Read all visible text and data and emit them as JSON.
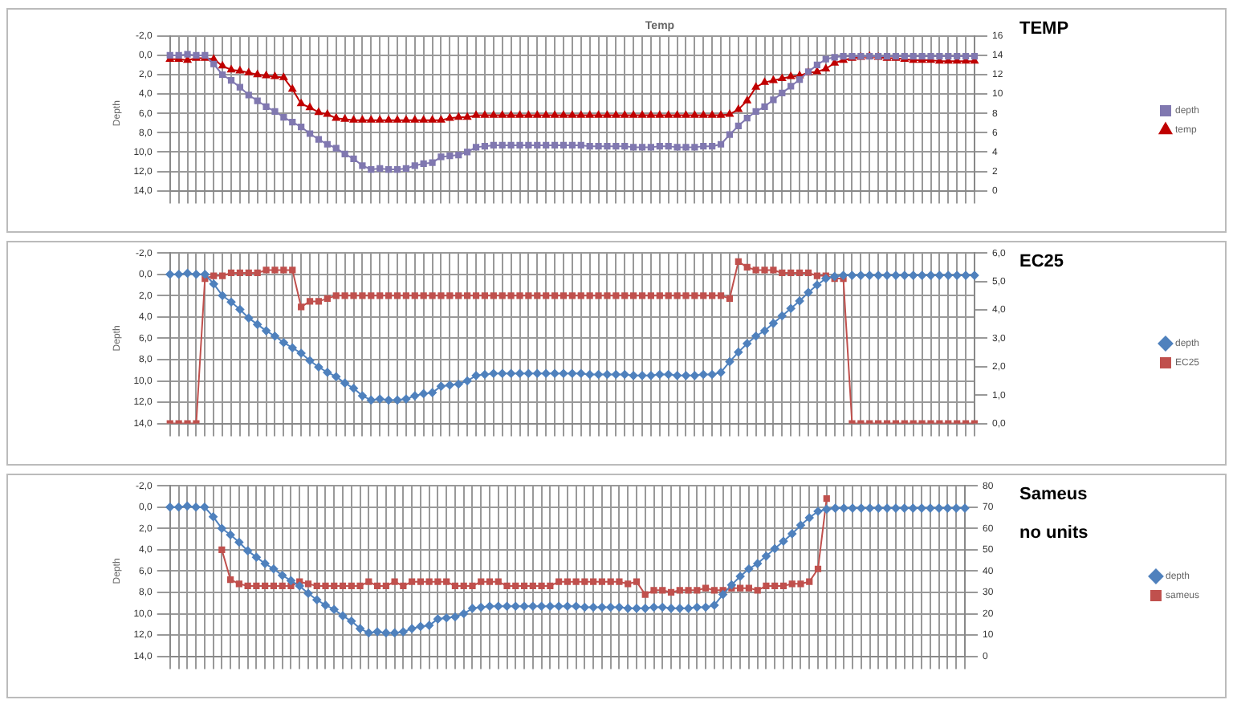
{
  "chart_data": [
    {
      "type": "line",
      "title": "Temp",
      "ylabel": "Depth",
      "annotations": [
        "TEMP"
      ],
      "legend": "right",
      "grid": true,
      "categories": [
        null,
        null,
        null,
        null,
        null,
        null,
        null,
        null,
        null,
        null,
        null,
        null,
        null,
        null,
        null,
        null,
        null,
        null,
        null,
        null,
        null,
        null,
        null,
        null,
        null,
        null,
        null,
        null,
        null,
        null,
        null,
        null,
        null,
        null,
        null,
        null,
        null,
        null,
        null,
        null,
        null,
        null,
        null,
        null,
        null,
        null,
        null,
        null,
        null,
        null,
        null,
        null,
        null,
        null,
        null,
        null,
        null,
        null,
        null,
        null,
        null,
        null,
        null,
        null,
        null,
        null,
        null,
        null,
        null,
        null,
        null,
        null,
        null,
        null,
        null,
        null,
        null,
        null,
        null,
        null,
        null,
        null,
        null,
        null,
        null,
        null,
        null,
        null,
        null,
        null,
        null,
        null,
        null
      ],
      "ylim": [
        14,
        -2
      ],
      "yticks": [
        {
          "value": -2,
          "label": "-2,0"
        },
        {
          "value": 0,
          "label": "0,0"
        },
        {
          "value": 2,
          "label": "2,0"
        },
        {
          "value": 4,
          "label": "4,0"
        },
        {
          "value": 6,
          "label": "6,0"
        },
        {
          "value": 8,
          "label": "8,0"
        },
        {
          "value": 10,
          "label": "10,0"
        },
        {
          "value": 12,
          "label": "12,0"
        },
        {
          "value": 14,
          "label": "14,0"
        }
      ],
      "y2lim": [
        0,
        16
      ],
      "y2ticks": [
        0,
        2,
        4,
        6,
        8,
        10,
        12,
        14,
        16
      ],
      "series": [
        {
          "name": "depth",
          "color": "#8078b0",
          "marker": "square",
          "values": [
            0.0,
            0.0,
            -0.1,
            0.0,
            0.0,
            0.9,
            2.0,
            2.6,
            3.3,
            4.1,
            4.7,
            5.3,
            5.8,
            6.4,
            6.9,
            7.4,
            8.1,
            8.7,
            9.2,
            9.6,
            10.2,
            10.7,
            11.4,
            11.8,
            11.7,
            11.8,
            11.8,
            11.7,
            11.4,
            11.2,
            11.1,
            10.5,
            10.4,
            10.3,
            10.0,
            9.5,
            9.4,
            9.3,
            9.3,
            9.3,
            9.3,
            9.3,
            9.3,
            9.3,
            9.3,
            9.3,
            9.3,
            9.3,
            9.4,
            9.4,
            9.4,
            9.4,
            9.4,
            9.5,
            9.5,
            9.5,
            9.4,
            9.4,
            9.5,
            9.5,
            9.5,
            9.4,
            9.4,
            9.2,
            8.2,
            7.3,
            6.5,
            5.8,
            5.3,
            4.6,
            3.9,
            3.2,
            2.5,
            1.7,
            1.0,
            0.4,
            0.2,
            0.1,
            0.1,
            0.1,
            0.1,
            0.1,
            0.1,
            0.1,
            0.1,
            0.1,
            0.1,
            0.1,
            0.1,
            0.1,
            0.1,
            0.1,
            0.1
          ]
        },
        {
          "name": "temp",
          "color": "#c00000",
          "marker": "triangle",
          "axis": "y2",
          "values": [
            13.6,
            13.6,
            13.5,
            13.7,
            13.7,
            13.6,
            12.9,
            12.5,
            12.4,
            12.2,
            12.0,
            11.9,
            11.8,
            11.7,
            10.5,
            9.0,
            8.6,
            8.1,
            7.9,
            7.5,
            7.4,
            7.3,
            7.3,
            7.3,
            7.3,
            7.3,
            7.3,
            7.3,
            7.3,
            7.3,
            7.3,
            7.3,
            7.5,
            7.6,
            7.6,
            7.8,
            7.8,
            7.8,
            7.8,
            7.8,
            7.8,
            7.8,
            7.8,
            7.8,
            7.8,
            7.8,
            7.8,
            7.8,
            7.8,
            7.8,
            7.8,
            7.8,
            7.8,
            7.8,
            7.8,
            7.8,
            7.8,
            7.8,
            7.8,
            7.8,
            7.8,
            7.8,
            7.8,
            7.8,
            7.9,
            8.4,
            9.3,
            10.7,
            11.2,
            11.4,
            11.6,
            11.8,
            11.9,
            12.2,
            12.3,
            12.6,
            13.2,
            13.5,
            13.7,
            13.8,
            13.9,
            13.8,
            13.7,
            13.7,
            13.6,
            13.5,
            13.5,
            13.5,
            13.4,
            13.4,
            13.4,
            13.4,
            13.4
          ]
        }
      ]
    },
    {
      "type": "line",
      "ylabel": "Depth",
      "annotations": [
        "EC25"
      ],
      "legend": "right",
      "grid": true,
      "categories": [
        null,
        null,
        null,
        null,
        null,
        null,
        null,
        null,
        null,
        null,
        null,
        null,
        null,
        null,
        null,
        null,
        null,
        null,
        null,
        null,
        null,
        null,
        null,
        null,
        null,
        null,
        null,
        null,
        null,
        null,
        null,
        null,
        null,
        null,
        null,
        null,
        null,
        null,
        null,
        null,
        null,
        null,
        null,
        null,
        null,
        null,
        null,
        null,
        null,
        null,
        null,
        null,
        null,
        null,
        null,
        null,
        null,
        null,
        null,
        null,
        null,
        null,
        null,
        null,
        null,
        null,
        null,
        null,
        null,
        null,
        null,
        null,
        null,
        null,
        null,
        null,
        null,
        null,
        null,
        null,
        null,
        null,
        null,
        null,
        null,
        null,
        null,
        null,
        null,
        null,
        null,
        null,
        null
      ],
      "ylim": [
        14,
        -2
      ],
      "yticks": [
        {
          "value": -2,
          "label": "-2,0"
        },
        {
          "value": 0,
          "label": "0,0"
        },
        {
          "value": 2,
          "label": "2,0"
        },
        {
          "value": 4,
          "label": "4,0"
        },
        {
          "value": 6,
          "label": "6,0"
        },
        {
          "value": 8,
          "label": "8,0"
        },
        {
          "value": 10,
          "label": "10,0"
        },
        {
          "value": 12,
          "label": "12,0"
        },
        {
          "value": 14,
          "label": "14,0"
        }
      ],
      "y2lim": [
        0,
        6
      ],
      "y2ticks": [
        {
          "value": 0,
          "label": "0,0"
        },
        {
          "value": 1,
          "label": "1,0"
        },
        {
          "value": 2,
          "label": "2,0"
        },
        {
          "value": 3,
          "label": "3,0"
        },
        {
          "value": 4,
          "label": "4,0"
        },
        {
          "value": 5,
          "label": "5,0"
        },
        {
          "value": 6,
          "label": "6,0"
        }
      ],
      "series": [
        {
          "name": "depth",
          "color": "#4f81bd",
          "marker": "diamond",
          "values": [
            0.0,
            0.0,
            -0.1,
            0.0,
            0.0,
            0.9,
            2.0,
            2.6,
            3.3,
            4.1,
            4.7,
            5.3,
            5.8,
            6.4,
            6.9,
            7.4,
            8.1,
            8.7,
            9.2,
            9.6,
            10.2,
            10.7,
            11.4,
            11.8,
            11.7,
            11.8,
            11.8,
            11.7,
            11.4,
            11.2,
            11.1,
            10.5,
            10.4,
            10.3,
            10.0,
            9.5,
            9.4,
            9.3,
            9.3,
            9.3,
            9.3,
            9.3,
            9.3,
            9.3,
            9.3,
            9.3,
            9.3,
            9.3,
            9.4,
            9.4,
            9.4,
            9.4,
            9.4,
            9.5,
            9.5,
            9.5,
            9.4,
            9.4,
            9.5,
            9.5,
            9.5,
            9.4,
            9.4,
            9.2,
            8.2,
            7.3,
            6.5,
            5.8,
            5.3,
            4.6,
            3.9,
            3.2,
            2.5,
            1.7,
            1.0,
            0.4,
            0.2,
            0.1,
            0.1,
            0.1,
            0.1,
            0.1,
            0.1,
            0.1,
            0.1,
            0.1,
            0.1,
            0.1,
            0.1,
            0.1,
            0.1,
            0.1,
            0.1
          ]
        },
        {
          "name": "EC25",
          "color": "#c0504d",
          "marker": "square",
          "axis": "y2",
          "values": [
            0.0,
            0.0,
            0.0,
            0.0,
            5.1,
            5.2,
            5.2,
            5.3,
            5.3,
            5.3,
            5.3,
            5.4,
            5.4,
            5.4,
            5.4,
            4.1,
            4.3,
            4.3,
            4.4,
            4.5,
            4.5,
            4.5,
            4.5,
            4.5,
            4.5,
            4.5,
            4.5,
            4.5,
            4.5,
            4.5,
            4.5,
            4.5,
            4.5,
            4.5,
            4.5,
            4.5,
            4.5,
            4.5,
            4.5,
            4.5,
            4.5,
            4.5,
            4.5,
            4.5,
            4.5,
            4.5,
            4.5,
            4.5,
            4.5,
            4.5,
            4.5,
            4.5,
            4.5,
            4.5,
            4.5,
            4.5,
            4.5,
            4.5,
            4.5,
            4.5,
            4.5,
            4.5,
            4.5,
            4.5,
            4.4,
            5.7,
            5.5,
            5.4,
            5.4,
            5.4,
            5.3,
            5.3,
            5.3,
            5.3,
            5.2,
            5.2,
            5.1,
            5.1,
            0.0,
            0.0,
            0.0,
            0.0,
            0.0,
            0.0,
            0.0,
            0.0,
            0.0,
            0.0,
            0.0,
            0.0,
            0.0,
            0.0,
            0.0
          ]
        }
      ]
    },
    {
      "type": "line",
      "ylabel": "Depth",
      "annotations": [
        "Sameus",
        "no units"
      ],
      "legend": "right",
      "grid": true,
      "categories": [
        null,
        null,
        null,
        null,
        null,
        null,
        null,
        null,
        null,
        null,
        null,
        null,
        null,
        null,
        null,
        null,
        null,
        null,
        null,
        null,
        null,
        null,
        null,
        null,
        null,
        null,
        null,
        null,
        null,
        null,
        null,
        null,
        null,
        null,
        null,
        null,
        null,
        null,
        null,
        null,
        null,
        null,
        null,
        null,
        null,
        null,
        null,
        null,
        null,
        null,
        null,
        null,
        null,
        null,
        null,
        null,
        null,
        null,
        null,
        null,
        null,
        null,
        null,
        null,
        null,
        null,
        null,
        null,
        null,
        null,
        null,
        null,
        null,
        null,
        null,
        null,
        null,
        null,
        null,
        null,
        null,
        null,
        null,
        null,
        null,
        null,
        null,
        null,
        null,
        null,
        null,
        null,
        null
      ],
      "ylim": [
        14,
        -2
      ],
      "yticks": [
        {
          "value": -2,
          "label": "-2,0"
        },
        {
          "value": 0,
          "label": "0,0"
        },
        {
          "value": 2,
          "label": "2,0"
        },
        {
          "value": 4,
          "label": "4,0"
        },
        {
          "value": 6,
          "label": "6,0"
        },
        {
          "value": 8,
          "label": "8,0"
        },
        {
          "value": 10,
          "label": "10,0"
        },
        {
          "value": 12,
          "label": "12,0"
        },
        {
          "value": 14,
          "label": "14,0"
        }
      ],
      "y2lim": [
        0,
        80
      ],
      "y2ticks": [
        0,
        10,
        20,
        30,
        40,
        50,
        60,
        70,
        80
      ],
      "series": [
        {
          "name": "depth",
          "color": "#4f81bd",
          "marker": "diamond",
          "values": [
            0.0,
            0.0,
            -0.1,
            0.0,
            0.0,
            0.9,
            2.0,
            2.6,
            3.3,
            4.1,
            4.7,
            5.3,
            5.8,
            6.4,
            6.9,
            7.4,
            8.1,
            8.7,
            9.2,
            9.6,
            10.2,
            10.7,
            11.4,
            11.8,
            11.7,
            11.8,
            11.8,
            11.7,
            11.4,
            11.2,
            11.1,
            10.5,
            10.4,
            10.3,
            10.0,
            9.5,
            9.4,
            9.3,
            9.3,
            9.3,
            9.3,
            9.3,
            9.3,
            9.3,
            9.3,
            9.3,
            9.3,
            9.3,
            9.4,
            9.4,
            9.4,
            9.4,
            9.4,
            9.5,
            9.5,
            9.5,
            9.4,
            9.4,
            9.5,
            9.5,
            9.5,
            9.4,
            9.4,
            9.2,
            8.2,
            7.3,
            6.5,
            5.8,
            5.3,
            4.6,
            3.9,
            3.2,
            2.5,
            1.7,
            1.0,
            0.4,
            0.2,
            0.1,
            0.1,
            0.1,
            0.1,
            0.1,
            0.1,
            0.1,
            0.1,
            0.1,
            0.1,
            0.1,
            0.1,
            0.1,
            0.1,
            0.1,
            0.1
          ]
        },
        {
          "name": "sameus",
          "color": "#c0504d",
          "marker": "square",
          "axis": "y2",
          "values": [
            null,
            null,
            null,
            null,
            null,
            null,
            50,
            36,
            34,
            33,
            33,
            33,
            33,
            33,
            33,
            35,
            34,
            33,
            33,
            33,
            33,
            33,
            33,
            35,
            33,
            33,
            35,
            33,
            35,
            35,
            35,
            35,
            35,
            33,
            33,
            33,
            35,
            35,
            35,
            33,
            33,
            33,
            33,
            33,
            33,
            35,
            35,
            35,
            35,
            35,
            35,
            35,
            35,
            34,
            35,
            29,
            31,
            31,
            30,
            31,
            31,
            31,
            32,
            31,
            31,
            32,
            32,
            32,
            31,
            33,
            33,
            33,
            34,
            34,
            35,
            41,
            74,
            null,
            null,
            null,
            null,
            null,
            null,
            null,
            null,
            null,
            null,
            null,
            null,
            null,
            null,
            null,
            null
          ]
        }
      ]
    }
  ]
}
